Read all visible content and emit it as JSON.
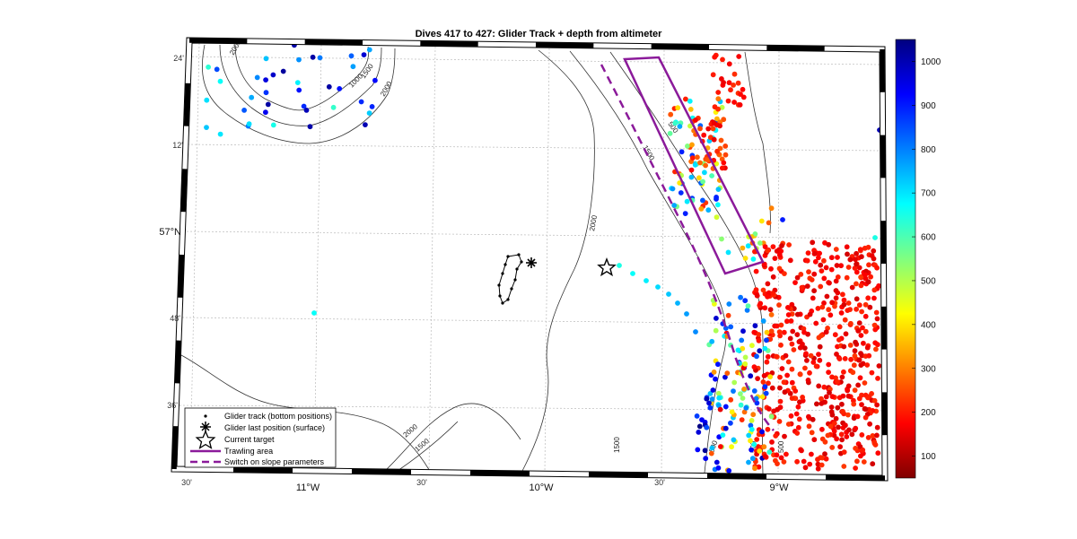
{
  "title": "Dives 417 to 427: Glider Track + depth from altimeter",
  "axes": {
    "lat_ticks": [
      {
        "label": "24'",
        "lat": 57.4
      },
      {
        "label": "12'",
        "lat": 57.2
      },
      {
        "label": "57°N",
        "lat": 57.0,
        "major": true
      },
      {
        "label": "48'",
        "lat": 56.8
      },
      {
        "label": "36'",
        "lat": 56.6
      }
    ],
    "lon_ticks": [
      {
        "label": "30'",
        "lon": -11.5
      },
      {
        "label": "11°W",
        "lon": -11.0,
        "major": true
      },
      {
        "label": "30'",
        "lon": -10.5
      },
      {
        "label": "10°W",
        "lon": -10.0,
        "major": true
      },
      {
        "label": "30'",
        "lon": -9.5
      },
      {
        "label": "9°W",
        "lon": -9.0,
        "major": true
      }
    ]
  },
  "colorbar": {
    "min": 50,
    "max": 1050,
    "tick_labels": [
      "1000",
      "900",
      "800",
      "700",
      "600",
      "500",
      "400",
      "300",
      "200",
      "100"
    ],
    "tick_values": [
      1000,
      900,
      800,
      700,
      600,
      500,
      400,
      300,
      200,
      100
    ]
  },
  "contours": {
    "labels": [
      "2000",
      "1500",
      "1000",
      "2000",
      "2000",
      "2000",
      "1500",
      "1500",
      "1500",
      "500",
      "500",
      "500",
      "500"
    ]
  },
  "legend": {
    "items": [
      {
        "label": "Glider track (bottom positions)",
        "symbol": "dot"
      },
      {
        "label": "Glider last position (surface)",
        "symbol": "asterisk"
      },
      {
        "label": "Current target",
        "symbol": "star"
      },
      {
        "label": "Trawling area",
        "symbol": "solid-line",
        "color": "#8b1a9a"
      },
      {
        "label": "Switch on slope parameters",
        "symbol": "dashed-line",
        "color": "#8b1a9a"
      }
    ]
  },
  "colors": {
    "trawling_area": "#8b1a9a",
    "switch_line": "#8b1a9a"
  }
}
